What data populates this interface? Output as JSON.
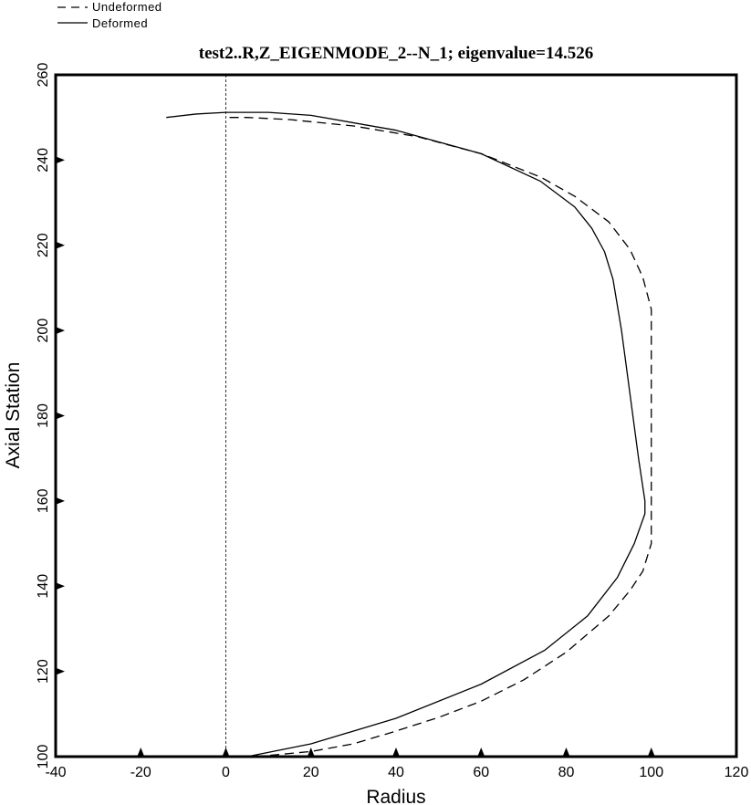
{
  "chart_data": {
    "type": "line",
    "title": "test2..R,Z_EIGENMODE_2--N_1; eigenvalue=14.526",
    "xlabel": "Radius",
    "ylabel": "Axial Station",
    "xlim": [
      -40,
      120
    ],
    "ylim": [
      100,
      260
    ],
    "x_ticks": [
      -40,
      -20,
      0,
      20,
      40,
      60,
      80,
      100,
      120
    ],
    "y_ticks": [
      100,
      120,
      140,
      160,
      180,
      200,
      220,
      240,
      260
    ],
    "x_tick_labels": [
      "-40",
      "-20",
      "0",
      "20",
      "40",
      "60",
      "80",
      "100",
      "120"
    ],
    "y_tick_labels": [
      "100",
      "120",
      "140",
      "160",
      "180",
      "200",
      "220",
      "240",
      "260"
    ],
    "grid": false,
    "legend_position": "top-left",
    "reference_line": {
      "x": 0,
      "style": "dashed"
    },
    "colors": {
      "line": "#000000",
      "background": "#ffffff"
    },
    "series": [
      {
        "name": "Undeformed",
        "style": "dashed",
        "x": [
          7,
          20,
          30,
          40,
          50,
          60,
          70,
          80,
          90,
          95,
          98,
          100,
          100,
          100,
          100,
          100,
          98,
          95,
          90,
          82,
          74,
          60,
          45,
          30,
          15,
          5,
          0
        ],
        "y": [
          100,
          101.2,
          103,
          106,
          109.2,
          113,
          118,
          124.5,
          133,
          139,
          143.5,
          150,
          160,
          175,
          190,
          205,
          212.5,
          219,
          225.5,
          231.5,
          236,
          241.5,
          245.5,
          248,
          249.5,
          250,
          250
        ]
      },
      {
        "name": "Deformed",
        "style": "solid",
        "x": [
          5,
          20,
          40,
          60,
          75,
          85,
          92,
          96,
          98.5,
          98.5,
          97,
          95,
          93,
          91,
          89,
          86,
          82,
          74,
          60,
          40,
          20,
          10,
          0,
          -7,
          -14
        ],
        "y": [
          100,
          103,
          109,
          117,
          125,
          133,
          142,
          150,
          157,
          160,
          170,
          185,
          200,
          212,
          218.5,
          224,
          229,
          235,
          241.5,
          247,
          250.5,
          251.2,
          251.2,
          250.8,
          250
        ]
      }
    ]
  }
}
